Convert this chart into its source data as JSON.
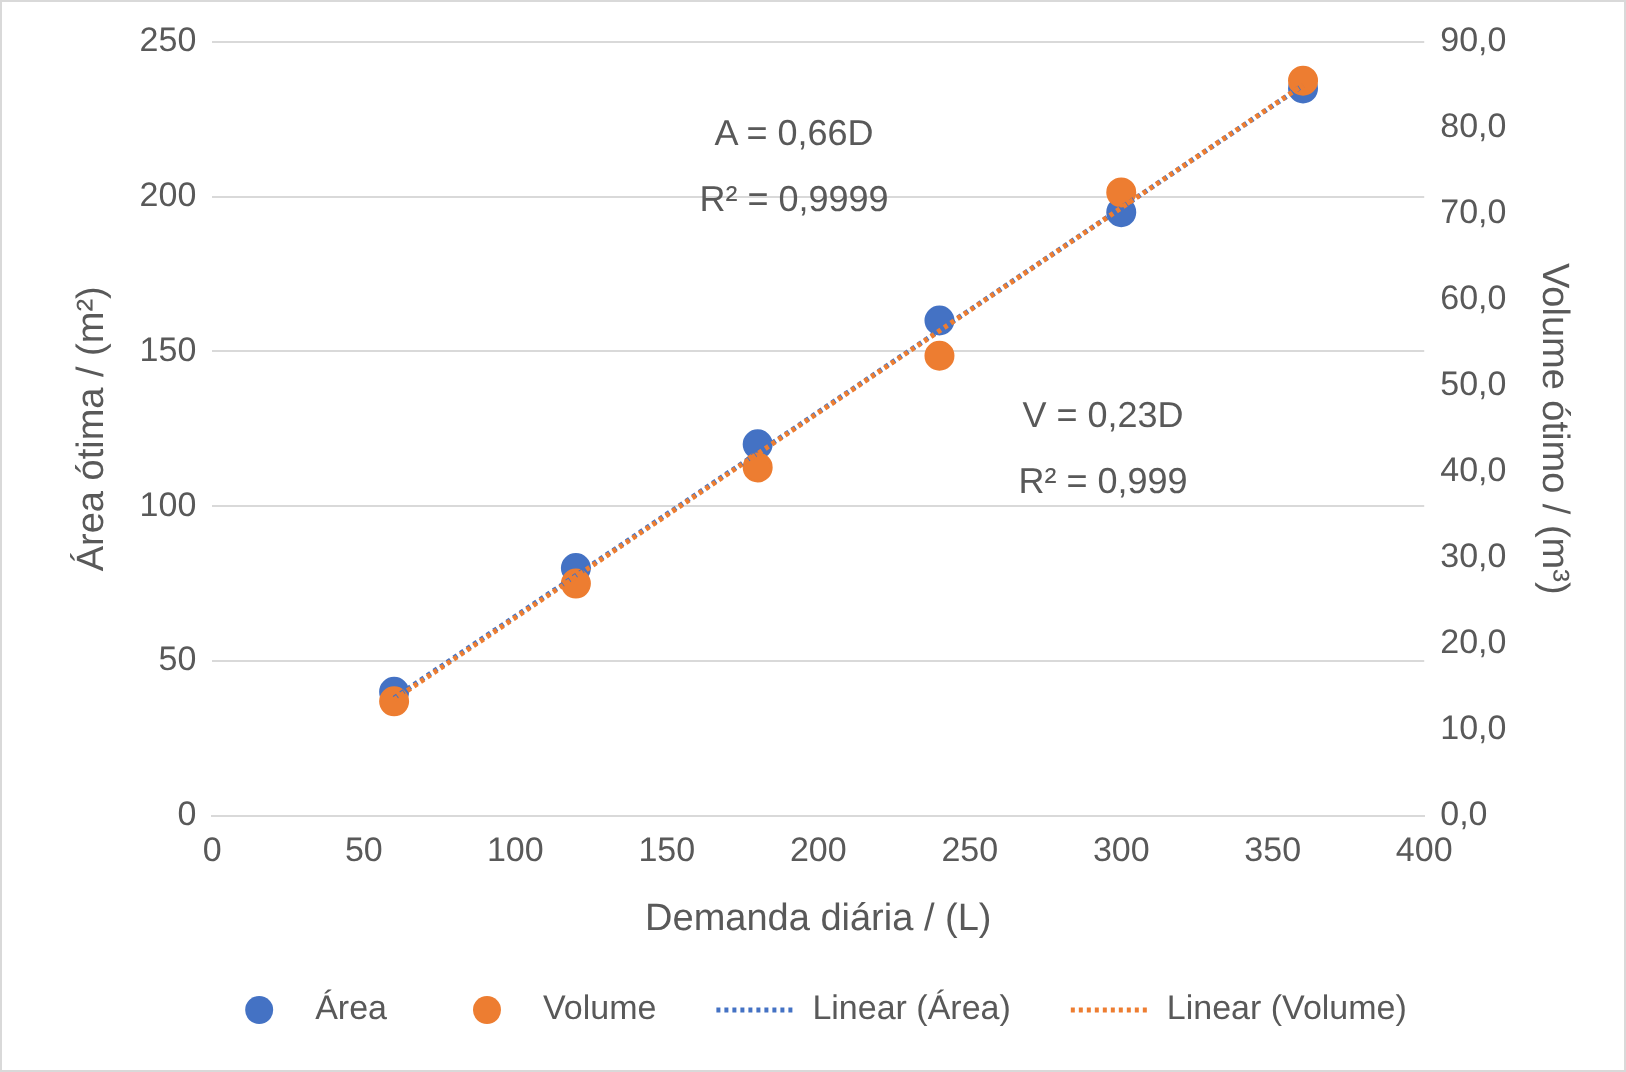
{
  "chart_data": {
    "type": "scatter",
    "xlabel": "Demanda diária / (L)",
    "ylabel": "Área ótima / (m²)",
    "y2label": "Volume ótimo / (m³)",
    "xlim": [
      0,
      400
    ],
    "xticks": [
      0,
      50,
      100,
      150,
      200,
      250,
      300,
      350,
      400
    ],
    "ylim": [
      0,
      250
    ],
    "yticks": [
      0,
      50,
      100,
      150,
      200,
      250
    ],
    "y2lim": [
      0,
      90
    ],
    "y2ticks": [
      {
        "value": 0,
        "label": "0,0"
      },
      {
        "value": 10,
        "label": "10,0"
      },
      {
        "value": 20,
        "label": "20,0"
      },
      {
        "value": 30,
        "label": "30,0"
      },
      {
        "value": 40,
        "label": "40,0"
      },
      {
        "value": 50,
        "label": "50,0"
      },
      {
        "value": 60,
        "label": "60,0"
      },
      {
        "value": 70,
        "label": "70,0"
      },
      {
        "value": 80,
        "label": "80,0"
      },
      {
        "value": 90,
        "label": "90,0"
      }
    ],
    "grid": "y",
    "legend": "bottom",
    "marker": "circle",
    "series": [
      {
        "name": "Área",
        "color": "#4472c4",
        "x": [
          60,
          120,
          180,
          240,
          300,
          360
        ],
        "values": [
          40,
          80,
          120,
          160,
          195,
          235
        ]
      },
      {
        "name": "Volume",
        "axis": "y2",
        "color": "#ed7d31",
        "x": [
          60,
          120,
          180,
          240,
          300,
          360
        ],
        "values": [
          13.3,
          27,
          40.5,
          53.5,
          72.5,
          85.5
        ]
      },
      {
        "name": "Linear (Área)",
        "type": "line",
        "line_style": "dotted",
        "marker": "none",
        "color": "#4472c4",
        "x": [
          60,
          360
        ],
        "values": [
          38,
          236
        ]
      },
      {
        "name": "Linear (Volume)",
        "type": "line",
        "line_style": "dotted",
        "marker": "none",
        "axis": "y2",
        "color": "#ed7d31",
        "x": [
          60,
          360
        ],
        "values": [
          13.5,
          85
        ]
      }
    ],
    "annotations": [
      "A = 0,66D",
      "R² = 0,9999",
      "V = 0,23D",
      "R² = 0,999"
    ]
  }
}
